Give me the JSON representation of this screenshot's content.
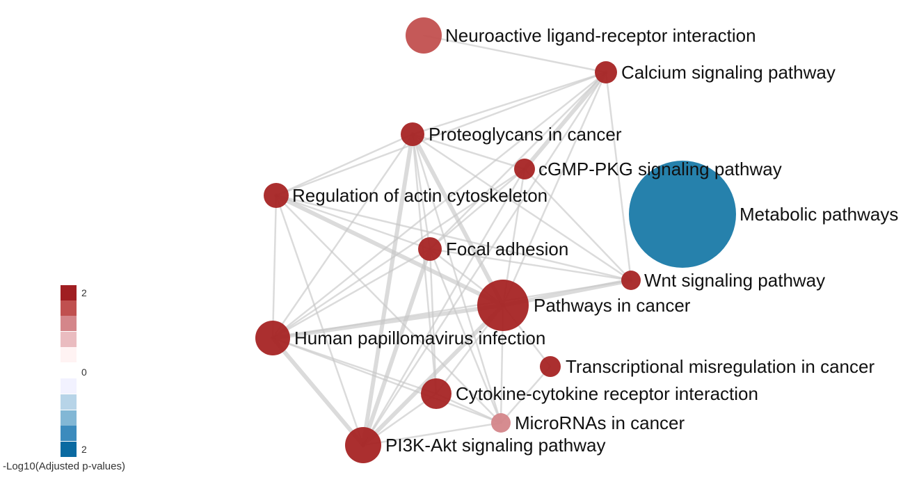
{
  "colors": {
    "edge": "#c8c8c8",
    "scale": [
      "#a01e22",
      "#c0504f",
      "#d4868a",
      "#eabcc0",
      "#fff3f3",
      "#f2f2ff",
      "#b7d4e8",
      "#82b7d5",
      "#3c8bbd",
      "#0a6aa1"
    ]
  },
  "legend": {
    "title": "-Log10(Adjusted p-values)",
    "tick_top": "2",
    "tick_mid": "0",
    "tick_bottom": "2"
  },
  "nodes": [
    {
      "id": "neuro",
      "label": "Neuroactive ligand-receptor interaction",
      "color": "#c2504f"
    },
    {
      "id": "calcium",
      "label": "Calcium signaling pathway",
      "color": "#a72424"
    },
    {
      "id": "proteo",
      "label": "Proteoglycans in cancer",
      "color": "#a72424"
    },
    {
      "id": "cgmp",
      "label": "cGMP-PKG signaling pathway",
      "color": "#a72424"
    },
    {
      "id": "metabolic",
      "label": "Metabolic pathways",
      "color": "#1a7aa8"
    },
    {
      "id": "actin",
      "label": "Regulation of actin cytoskeleton",
      "color": "#a72424"
    },
    {
      "id": "focal",
      "label": "Focal adhesion",
      "color": "#a72424"
    },
    {
      "id": "wnt",
      "label": "Wnt signaling pathway",
      "color": "#a72424"
    },
    {
      "id": "cancer",
      "label": "Pathways in cancer",
      "color": "#a72424"
    },
    {
      "id": "hpv",
      "label": "Human papillomavirus infection",
      "color": "#a72424"
    },
    {
      "id": "transcript",
      "label": "Transcriptional misregulation in cancer",
      "color": "#a72424"
    },
    {
      "id": "cytokine",
      "label": "Cytokine-cytokine receptor interaction",
      "color": "#a72424"
    },
    {
      "id": "micro",
      "label": "MicroRNAs in cancer",
      "color": "#d4868a"
    },
    {
      "id": "pi3k",
      "label": "PI3K-Akt signaling pathway",
      "color": "#a72424"
    }
  ],
  "edges": [
    [
      "neuro",
      "calcium"
    ],
    [
      "calcium",
      "proteo"
    ],
    [
      "calcium",
      "cgmp"
    ],
    [
      "calcium",
      "actin"
    ],
    [
      "calcium",
      "focal"
    ],
    [
      "calcium",
      "wnt"
    ],
    [
      "calcium",
      "cancer"
    ],
    [
      "calcium",
      "hpv"
    ],
    [
      "calcium",
      "pi3k"
    ],
    [
      "proteo",
      "actin"
    ],
    [
      "proteo",
      "focal"
    ],
    [
      "proteo",
      "cgmp"
    ],
    [
      "proteo",
      "cancer"
    ],
    [
      "proteo",
      "hpv"
    ],
    [
      "proteo",
      "wnt"
    ],
    [
      "proteo",
      "cytokine"
    ],
    [
      "proteo",
      "micro"
    ],
    [
      "proteo",
      "pi3k"
    ],
    [
      "cgmp",
      "cancer"
    ],
    [
      "cgmp",
      "focal"
    ],
    [
      "cgmp",
      "wnt"
    ],
    [
      "cgmp",
      "pi3k"
    ],
    [
      "cgmp",
      "hpv"
    ],
    [
      "actin",
      "focal"
    ],
    [
      "actin",
      "cancer"
    ],
    [
      "actin",
      "hpv"
    ],
    [
      "actin",
      "pi3k"
    ],
    [
      "actin",
      "wnt"
    ],
    [
      "actin",
      "micro"
    ],
    [
      "focal",
      "cancer"
    ],
    [
      "focal",
      "hpv"
    ],
    [
      "focal",
      "pi3k"
    ],
    [
      "focal",
      "wnt"
    ],
    [
      "focal",
      "micro"
    ],
    [
      "focal",
      "cytokine"
    ],
    [
      "wnt",
      "cancer"
    ],
    [
      "wnt",
      "hpv"
    ],
    [
      "cancer",
      "hpv"
    ],
    [
      "cancer",
      "pi3k"
    ],
    [
      "cancer",
      "cytokine"
    ],
    [
      "cancer",
      "micro"
    ],
    [
      "cancer",
      "transcript"
    ],
    [
      "hpv",
      "pi3k"
    ],
    [
      "hpv",
      "cytokine"
    ],
    [
      "hpv",
      "micro"
    ],
    [
      "cytokine",
      "pi3k"
    ],
    [
      "cytokine",
      "micro"
    ],
    [
      "micro",
      "pi3k"
    ],
    [
      "transcript",
      "micro"
    ]
  ]
}
